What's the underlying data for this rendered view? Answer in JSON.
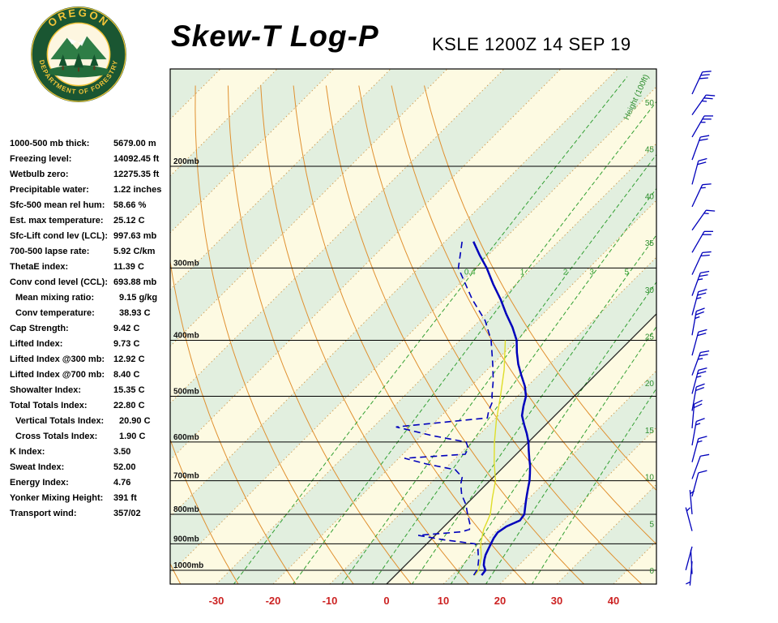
{
  "header": {
    "title": "Skew-T Log-P",
    "station": "KSLE 1200Z 14 SEP 19",
    "logo_text_top": "OREGON",
    "logo_text_bottom": "DEPARTMENT OF FORESTRY"
  },
  "stats": [
    {
      "label": "1000-500 mb thick:",
      "value": "5679.00 m"
    },
    {
      "label": "Freezing level:",
      "value": "14092.45 ft"
    },
    {
      "label": "Wetbulb zero:",
      "value": "12275.35 ft"
    },
    {
      "label": "Precipitable water:",
      "value": "1.22 inches"
    },
    {
      "label": "Sfc-500 mean rel hum:",
      "value": "58.66 %"
    },
    {
      "label": "Est. max temperature:",
      "value": "25.12 C"
    },
    {
      "label": "Sfc-Lift cond lev (LCL):",
      "value": "997.63 mb"
    },
    {
      "label": "700-500 lapse rate:",
      "value": "5.92 C/km"
    },
    {
      "label": "ThetaE index:",
      "value": "11.39 C"
    },
    {
      "label": "Conv cond level (CCL):",
      "value": "693.88 mb"
    },
    {
      "label": "Mean mixing ratio:",
      "value": "9.15 g/kg",
      "indent": true
    },
    {
      "label": "Conv temperature:",
      "value": "38.93 C",
      "indent": true
    },
    {
      "label": "Cap Strength:",
      "value": "9.42 C"
    },
    {
      "label": "Lifted Index:",
      "value": "9.73 C"
    },
    {
      "label": "Lifted Index @300 mb:",
      "value": "12.92 C"
    },
    {
      "label": "Lifted Index @700 mb:",
      "value": "8.40 C"
    },
    {
      "label": "Showalter Index:",
      "value": "15.35 C"
    },
    {
      "label": "Total Totals Index:",
      "value": "22.80 C"
    },
    {
      "label": "Vertical Totals Index:",
      "value": "20.90 C",
      "indent": true
    },
    {
      "label": "Cross Totals Index:",
      "value": "1.90 C",
      "indent": true
    },
    {
      "label": "K Index:",
      "value": "3.50"
    },
    {
      "label": "Sweat Index:",
      "value": "52.00"
    },
    {
      "label": "Energy Index:",
      "value": "4.76"
    },
    {
      "label": "Yonker Mixing Height:",
      "value": "391 ft"
    },
    {
      "label": "Transport wind:",
      "value": "357/02"
    }
  ],
  "chart_data": {
    "type": "skewt-log-p",
    "title": "Skew-T Log-P",
    "station": "KSLE 1200Z 14 SEP 19",
    "pressure_levels_mb": [
      200,
      300,
      400,
      500,
      600,
      700,
      800,
      900,
      1000
    ],
    "pressure_label_suffix": "mb",
    "temp_ticks_c": [
      -30,
      -20,
      -10,
      0,
      10,
      20,
      30,
      40
    ],
    "height_axis": {
      "label": "Height (100ft)",
      "ticks": [
        50,
        45,
        40,
        35,
        30,
        25,
        20,
        15,
        10,
        5,
        0
      ]
    },
    "mixing_ratio_lines_gkg": [
      0.4,
      1,
      2,
      3,
      5,
      8,
      12,
      20
    ],
    "mixing_ratio_labeled": [
      0.4,
      1,
      2,
      3,
      5
    ],
    "colors": {
      "temperature": "#0000bb",
      "dewpoint": "#0000bb",
      "wetbulb": "#dede2a",
      "adiabat": "#e09030",
      "isotherm_dot": "#cf9a50",
      "band_green": "#e2efdf",
      "band_cream": "#fdfae2",
      "mixing": "#33a033",
      "height_text": "#2e8e2e",
      "axis_red": "#cc2222",
      "barb": "#0000bb",
      "zero_line": "#222222"
    },
    "series": {
      "temperature_c": [
        [
          1020,
          15.2
        ],
        [
          1000,
          15.0
        ],
        [
          980,
          13.8
        ],
        [
          960,
          13.0
        ],
        [
          940,
          12.3
        ],
        [
          920,
          11.8
        ],
        [
          900,
          11.3
        ],
        [
          880,
          10.8
        ],
        [
          860,
          10.5
        ],
        [
          840,
          11.0
        ],
        [
          820,
          12.3
        ],
        [
          800,
          12.0
        ],
        [
          780,
          11.0
        ],
        [
          760,
          10.0
        ],
        [
          740,
          9.0
        ],
        [
          720,
          8.0
        ],
        [
          700,
          7.0
        ],
        [
          680,
          5.8
        ],
        [
          660,
          4.5
        ],
        [
          640,
          3.0
        ],
        [
          620,
          1.5
        ],
        [
          600,
          0.0
        ],
        [
          580,
          -1.8
        ],
        [
          560,
          -3.8
        ],
        [
          540,
          -5.8
        ],
        [
          520,
          -7.2
        ],
        [
          500,
          -8.5
        ],
        [
          480,
          -10.5
        ],
        [
          460,
          -13.0
        ],
        [
          440,
          -15.5
        ],
        [
          420,
          -17.8
        ],
        [
          400,
          -20.0
        ],
        [
          380,
          -23.0
        ],
        [
          360,
          -26.5
        ],
        [
          340,
          -30.0
        ],
        [
          320,
          -34.0
        ],
        [
          300,
          -38.0
        ],
        [
          285,
          -41.5
        ],
        [
          270,
          -45.0
        ]
      ],
      "dewpoint_c": [
        [
          1020,
          13.8
        ],
        [
          1000,
          13.5
        ],
        [
          985,
          13.0
        ],
        [
          960,
          12.0
        ],
        [
          940,
          11.0
        ],
        [
          920,
          10.0
        ],
        [
          900,
          8.5
        ],
        [
          885,
          2.0
        ],
        [
          870,
          -3.0
        ],
        [
          858,
          4.0
        ],
        [
          850,
          5.0
        ],
        [
          830,
          4.0
        ],
        [
          800,
          2.0
        ],
        [
          770,
          0.0
        ],
        [
          740,
          -2.5
        ],
        [
          710,
          -4.5
        ],
        [
          690,
          -5.5
        ],
        [
          670,
          -8.0
        ],
        [
          655,
          -14.0
        ],
        [
          640,
          -19.0
        ],
        [
          630,
          -9.0
        ],
        [
          615,
          -9.5
        ],
        [
          600,
          -11.0
        ],
        [
          585,
          -18.0
        ],
        [
          565,
          -26.0
        ],
        [
          545,
          -11.5
        ],
        [
          530,
          -12.5
        ],
        [
          510,
          -13.5
        ],
        [
          500,
          -14.5
        ],
        [
          470,
          -17.0
        ],
        [
          440,
          -20.0
        ],
        [
          400,
          -24.5
        ],
        [
          370,
          -29.0
        ],
        [
          340,
          -35.0
        ],
        [
          300,
          -43.0
        ],
        [
          270,
          -47.0
        ]
      ],
      "wetbulb_c": [
        [
          1020,
          14.0
        ],
        [
          1000,
          13.8
        ],
        [
          950,
          12.0
        ],
        [
          900,
          9.5
        ],
        [
          850,
          7.5
        ],
        [
          800,
          6.0
        ],
        [
          750,
          3.5
        ],
        [
          700,
          1.0
        ],
        [
          650,
          -2.5
        ],
        [
          600,
          -6.0
        ],
        [
          550,
          -9.5
        ],
        [
          500,
          -13.0
        ],
        [
          450,
          -17.0
        ],
        [
          400,
          -22.0
        ]
      ]
    },
    "winds_p_dir_spd": [
      [
        150,
        25,
        30
      ],
      [
        163,
        35,
        25
      ],
      [
        178,
        30,
        25
      ],
      [
        195,
        20,
        20
      ],
      [
        215,
        15,
        20
      ],
      [
        235,
        25,
        15
      ],
      [
        258,
        35,
        15
      ],
      [
        282,
        30,
        20
      ],
      [
        308,
        25,
        20
      ],
      [
        335,
        20,
        25
      ],
      [
        362,
        15,
        25
      ],
      [
        392,
        10,
        25
      ],
      [
        425,
        15,
        20
      ],
      [
        460,
        20,
        25
      ],
      [
        495,
        15,
        25
      ],
      [
        530,
        10,
        20
      ],
      [
        568,
        5,
        20
      ],
      [
        608,
        10,
        15
      ],
      [
        650,
        15,
        15
      ],
      [
        695,
        20,
        10
      ],
      [
        745,
        15,
        10
      ],
      [
        800,
        355,
        5
      ],
      [
        855,
        345,
        5
      ],
      [
        910,
        195,
        3
      ],
      [
        965,
        185,
        5
      ],
      [
        1015,
        357,
        2
      ]
    ]
  }
}
